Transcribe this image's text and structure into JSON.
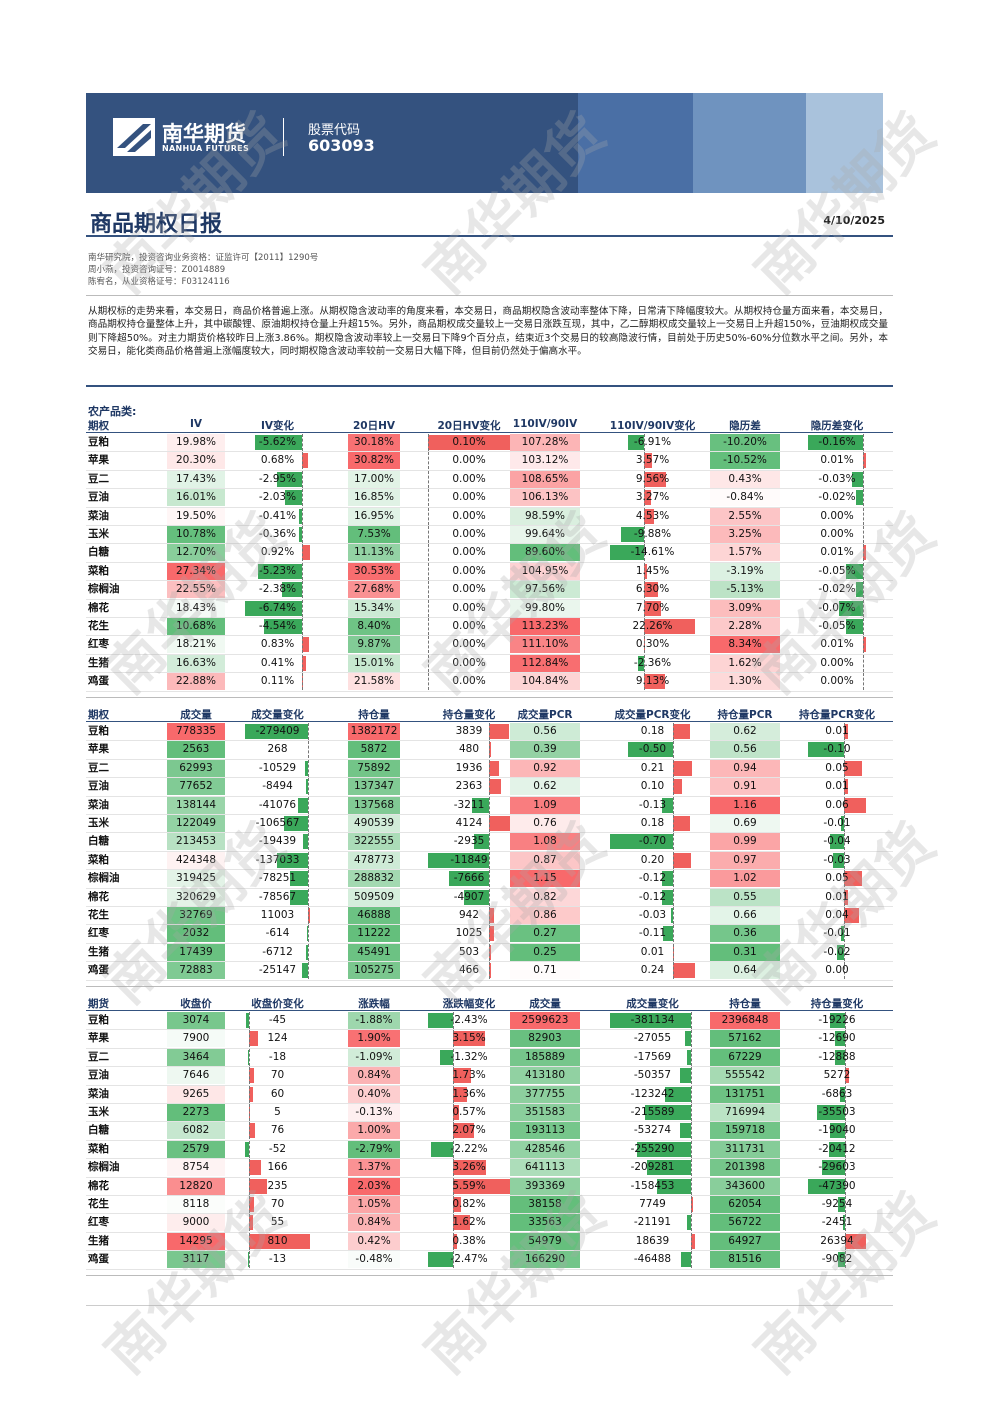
{
  "header": {
    "logo": "南华期货",
    "logo_en": "NANHUA FUTURES",
    "stock_label": "股票代码",
    "stock_code": "603093"
  },
  "title": "商品期权日报",
  "date": "4/10/2025",
  "authors": [
    "南华研究院，投资咨询业务资格：证监许可【2011】1290号",
    "周小燕，投资咨询证号：Z0014889",
    "陈宥名，从业资格证号：F03124116"
  ],
  "summary": "从期权标的走势来看，本交易日，商品价格普遍上涨。从期权隐含波动率的角度来看，本交易日，商品期权隐含波动率整体下降，日常清下降幅度较大。从期权持仓量方面来看，本交易日，商品期权持仓量整体上升，其中碳酸锂、原油期权持仓量上升超15%。另外，商品期权成交量较上一交易日涨跌互现，其中，乙二醇期权成交量较上一交易日上升超150%，豆油期权成交量则下降超50%。对主力期货价格较昨日上涨3.86%。期权隐含波动率较上一交易日下降9个百分点，结束近3个交易日的较高隐波行情，目前处于历史50%-60%分位数水平之间。另外，本交易日，能化类商品价格普遍上涨幅度较大，同时期权隐含波动率较前一交易日大幅下降，但目前仍然处于偏高水平。",
  "watermark": "南华期货",
  "tables": [
    {
      "section": "农产品类:",
      "headers": [
        "期权",
        "IV",
        "IV变化",
        "20日HV",
        "20日HV变化",
        "110IV/90IV",
        "110IV/90IV变化",
        "隐历差",
        "隐历差变化"
      ],
      "rows": [
        [
          "豆粕",
          "19.98%",
          "-5.62%",
          "30.18%",
          "0.10%",
          "107.28%",
          "-6.91%",
          "-10.20%",
          "-0.16%"
        ],
        [
          "苹果",
          "20.30%",
          "0.68%",
          "30.82%",
          "0.00%",
          "103.12%",
          "3.57%",
          "-10.52%",
          "0.01%"
        ],
        [
          "豆二",
          "17.43%",
          "-2.95%",
          "17.00%",
          "0.00%",
          "108.65%",
          "9.56%",
          "0.43%",
          "-0.03%"
        ],
        [
          "豆油",
          "16.01%",
          "-2.03%",
          "16.85%",
          "0.00%",
          "106.13%",
          "3.27%",
          "-0.84%",
          "-0.02%"
        ],
        [
          "菜油",
          "19.50%",
          "-0.41%",
          "16.95%",
          "0.00%",
          "98.59%",
          "4.53%",
          "2.55%",
          "0.00%"
        ],
        [
          "玉米",
          "10.78%",
          "-0.36%",
          "7.53%",
          "0.00%",
          "99.64%",
          "-9.88%",
          "3.25%",
          "0.00%"
        ],
        [
          "白糖",
          "12.70%",
          "0.92%",
          "11.13%",
          "0.00%",
          "89.60%",
          "-14.61%",
          "1.57%",
          "0.01%"
        ],
        [
          "菜粕",
          "27.34%",
          "-5.23%",
          "30.53%",
          "0.00%",
          "104.95%",
          "1.45%",
          "-3.19%",
          "-0.05%"
        ],
        [
          "棕榈油",
          "22.55%",
          "-2.38%",
          "27.68%",
          "0.00%",
          "97.56%",
          "6.30%",
          "-5.13%",
          "-0.02%"
        ],
        [
          "棉花",
          "18.43%",
          "-6.74%",
          "15.34%",
          "0.00%",
          "99.80%",
          "7.70%",
          "3.09%",
          "-0.07%"
        ],
        [
          "花生",
          "10.68%",
          "-4.54%",
          "8.40%",
          "0.00%",
          "113.23%",
          "22.26%",
          "2.28%",
          "-0.05%"
        ],
        [
          "红枣",
          "18.21%",
          "0.83%",
          "9.87%",
          "0.00%",
          "111.10%",
          "0.30%",
          "8.34%",
          "0.01%"
        ],
        [
          "生猪",
          "16.63%",
          "0.41%",
          "15.01%",
          "0.00%",
          "112.84%",
          "-2.36%",
          "1.62%",
          "0.00%"
        ],
        [
          "鸡蛋",
          "22.88%",
          "0.11%",
          "21.58%",
          "0.00%",
          "104.84%",
          "9.13%",
          "1.30%",
          "0.00%"
        ]
      ]
    },
    {
      "headers": [
        "期权",
        "成交量",
        "成交量变化",
        "持仓量",
        "持仓量变化",
        "成交量PCR",
        "成交量PCR变化",
        "持仓量PCR",
        "持仓量PCR变化"
      ],
      "rows": [
        [
          "豆粕",
          "778335",
          "-279409",
          "1382172",
          "3839",
          "0.56",
          "0.18",
          "0.62",
          "0.01"
        ],
        [
          "苹果",
          "2563",
          "268",
          "5872",
          "480",
          "0.39",
          "-0.50",
          "0.56",
          "-0.10"
        ],
        [
          "豆二",
          "62993",
          "-10529",
          "75892",
          "1936",
          "0.92",
          "0.21",
          "0.94",
          "0.05"
        ],
        [
          "豆油",
          "77652",
          "-8494",
          "137347",
          "2363",
          "0.62",
          "0.10",
          "0.91",
          "0.01"
        ],
        [
          "菜油",
          "138144",
          "-41076",
          "137568",
          "-3211",
          "1.09",
          "-0.13",
          "1.16",
          "0.06"
        ],
        [
          "玉米",
          "122049",
          "-106567",
          "490539",
          "4124",
          "0.76",
          "0.18",
          "0.69",
          "-0.01"
        ],
        [
          "白糖",
          "213453",
          "-19439",
          "322555",
          "-2935",
          "1.08",
          "-0.70",
          "0.99",
          "-0.04"
        ],
        [
          "菜粕",
          "424348",
          "-137033",
          "478773",
          "-11849",
          "0.87",
          "0.20",
          "0.97",
          "-0.03"
        ],
        [
          "棕榈油",
          "319425",
          "-78251",
          "288832",
          "-7666",
          "1.15",
          "-0.12",
          "1.02",
          "0.05"
        ],
        [
          "棉花",
          "320629",
          "-78567",
          "509509",
          "-4907",
          "0.82",
          "-0.12",
          "0.55",
          "0.01"
        ],
        [
          "花生",
          "32769",
          "11003",
          "46888",
          "942",
          "0.86",
          "-0.03",
          "0.66",
          "0.04"
        ],
        [
          "红枣",
          "2032",
          "-614",
          "11222",
          "1025",
          "0.27",
          "-0.11",
          "0.36",
          "-0.01"
        ],
        [
          "生猪",
          "17439",
          "-6712",
          "45491",
          "503",
          "0.25",
          "0.01",
          "0.31",
          "-0.02"
        ],
        [
          "鸡蛋",
          "72883",
          "-25147",
          "105275",
          "466",
          "0.71",
          "0.24",
          "0.64",
          "0.00"
        ]
      ]
    },
    {
      "headers": [
        "期货",
        "收盘价",
        "收盘价变化",
        "涨跌幅",
        "涨跌幅变化",
        "成交量",
        "成交量变化",
        "持仓量",
        "持仓量变化"
      ],
      "rows": [
        [
          "豆粕",
          "3074",
          "-45",
          "-1.88%",
          "-2.43%",
          "2599623",
          "-381134",
          "2396848",
          "-19226"
        ],
        [
          "苹果",
          "7900",
          "124",
          "1.90%",
          "3.15%",
          "82903",
          "-27055",
          "57162",
          "-12690"
        ],
        [
          "豆二",
          "3464",
          "-18",
          "-1.09%",
          "-1.32%",
          "185889",
          "-17569",
          "67229",
          "-12888"
        ],
        [
          "豆油",
          "7646",
          "70",
          "0.84%",
          "1.73%",
          "413180",
          "-50357",
          "555542",
          "5272"
        ],
        [
          "菜油",
          "9265",
          "60",
          "0.40%",
          "1.36%",
          "377755",
          "-123242",
          "131751",
          "-6863"
        ],
        [
          "玉米",
          "2273",
          "5",
          "-0.13%",
          "0.57%",
          "351583",
          "-215589",
          "716994",
          "-35503"
        ],
        [
          "白糖",
          "6082",
          "76",
          "1.00%",
          "2.07%",
          "193113",
          "-53274",
          "159718",
          "-19040"
        ],
        [
          "菜粕",
          "2579",
          "-52",
          "-2.79%",
          "-2.22%",
          "428546",
          "-255290",
          "311731",
          "-20412"
        ],
        [
          "棕榈油",
          "8754",
          "166",
          "1.37%",
          "3.26%",
          "641113",
          "-209281",
          "201398",
          "-29603"
        ],
        [
          "棉花",
          "12820",
          "235",
          "2.03%",
          "5.59%",
          "393369",
          "-158453",
          "343600",
          "-47390"
        ],
        [
          "花生",
          "8118",
          "70",
          "1.05%",
          "0.82%",
          "38158",
          "7749",
          "62054",
          "-9254"
        ],
        [
          "红枣",
          "9000",
          "55",
          "0.84%",
          "1.62%",
          "33563",
          "-21191",
          "56722",
          "-2451"
        ],
        [
          "生猪",
          "14295",
          "810",
          "0.42%",
          "0.38%",
          "54979",
          "18639",
          "64927",
          "26394"
        ],
        [
          "鸡蛋",
          "3117",
          "-13",
          "-0.48%",
          "-2.47%",
          "166290",
          "-46488",
          "81516",
          "-9082"
        ]
      ]
    }
  ]
}
